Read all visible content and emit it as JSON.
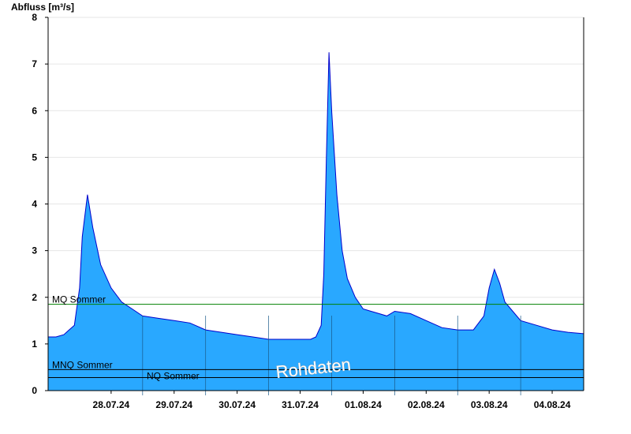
{
  "chart_data": {
    "type": "area",
    "ylabel": "Abfluss [m³/s]",
    "xlabel": "",
    "ylim": [
      0,
      8
    ],
    "yticks": [
      "0",
      "1",
      "2",
      "3",
      "4",
      "5",
      "6",
      "7",
      "8"
    ],
    "grid": true,
    "x_ticks": [
      "28.07.24",
      "29.07.24",
      "30.07.24",
      "31.07.24",
      "01.08.24",
      "02.08.24",
      "03.08.24",
      "04.08.24"
    ],
    "xlim": [
      "27.07.24 12:00",
      "04.08.24 24:00"
    ],
    "series": [
      {
        "x": [
          "27.07.24 12:00",
          "27.07.24 15:00",
          "27.07.24 18:00",
          "27.07.24 20:00",
          "27.07.24 22:00",
          "28.07.24 00:00",
          "28.07.24 01:00",
          "28.07.24 03:00",
          "28.07.24 05:00",
          "28.07.24 08:00",
          "28.07.24 12:00",
          "28.07.24 16:00",
          "28.07.24 20:00",
          "29.07.24 00:00",
          "29.07.24 06:00",
          "29.07.24 12:00",
          "29.07.24 18:00",
          "30.07.24 00:00",
          "30.07.24 06:00",
          "30.07.24 12:00",
          "30.07.24 18:00",
          "31.07.24 00:00",
          "31.07.24 06:00",
          "31.07.24 12:00",
          "31.07.24 16:00",
          "31.07.24 18:00",
          "31.07.24 20:00",
          "31.07.24 21:00",
          "31.07.24 22:00",
          "31.07.24 23:00",
          "01.08.24 00:00",
          "01.08.24 02:00",
          "01.08.24 04:00",
          "01.08.24 06:00",
          "01.08.24 09:00",
          "01.08.24 12:00",
          "01.08.24 15:00",
          "01.08.24 18:00",
          "01.08.24 21:00",
          "02.08.24 00:00",
          "02.08.24 06:00",
          "02.08.24 12:00",
          "02.08.24 18:00",
          "03.08.24 00:00",
          "03.08.24 06:00",
          "03.08.24 10:00",
          "03.08.24 12:00",
          "03.08.24 14:00",
          "03.08.24 16:00",
          "03.08.24 18:00",
          "03.08.24 21:00",
          "04.08.24 00:00",
          "04.08.24 06:00",
          "04.08.24 12:00",
          "04.08.24 18:00",
          "04.08.24 24:00"
        ],
        "values": [
          1.15,
          1.15,
          1.2,
          1.3,
          1.4,
          2.2,
          3.3,
          4.2,
          3.5,
          2.7,
          2.2,
          1.9,
          1.75,
          1.6,
          1.55,
          1.5,
          1.45,
          1.3,
          1.25,
          1.2,
          1.15,
          1.1,
          1.1,
          1.1,
          1.1,
          1.15,
          1.4,
          2.5,
          5.0,
          7.25,
          6.0,
          4.2,
          3.0,
          2.4,
          2.0,
          1.75,
          1.7,
          1.65,
          1.6,
          1.7,
          1.65,
          1.5,
          1.35,
          1.3,
          1.3,
          1.6,
          2.2,
          2.6,
          2.3,
          1.9,
          1.7,
          1.5,
          1.4,
          1.3,
          1.25,
          1.22
        ],
        "color": "#29A8FF",
        "line_color": "#0000CC"
      }
    ],
    "reference_lines": [
      {
        "label": "MQ Sommer",
        "value": 1.85,
        "color": "#008000"
      },
      {
        "label": "MNQ Sommer",
        "value": 0.45,
        "color": "#000000"
      },
      {
        "label": "NQ Sommer",
        "value": 0.28,
        "color": "#000000"
      }
    ],
    "watermark": "Rohdaten"
  }
}
